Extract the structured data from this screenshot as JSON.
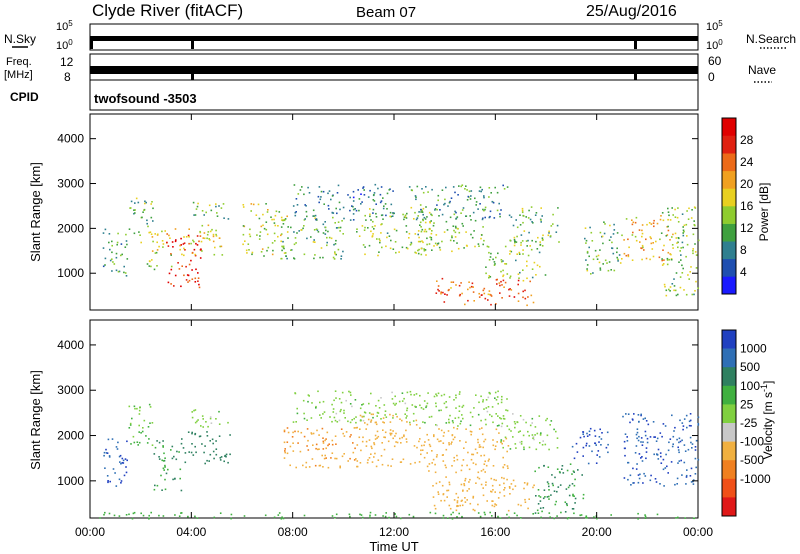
{
  "header": {
    "station": "Clyde River (fitACF)",
    "beam": "Beam 07",
    "date": "25/Aug/2016"
  },
  "strip_labels": {
    "nsky": "N.Sky",
    "nsearch": "N.Search",
    "freq_1": "Freq.",
    "freq_2": "[MHz]",
    "nave": "Nave",
    "cpid": "CPID",
    "cpid_value": "twofsound -3503"
  },
  "strip_ticks": {
    "nsky_left": [
      "10^5",
      "10^0"
    ],
    "nsky_right": [
      "10^5",
      "10^0"
    ],
    "freq_left": [
      "12",
      "8"
    ],
    "nave_right": [
      "60",
      "0"
    ]
  },
  "colors": {
    "power": [
      "#1a1aff",
      "#1f4fb0",
      "#2f7f8f",
      "#3fa03f",
      "#8fcc2f",
      "#e8d020",
      "#f0a020",
      "#ec6a18",
      "#e02010",
      "#e00000"
    ],
    "velocity": [
      "#2040c0",
      "#2f6fb5",
      "#2f8060",
      "#40b040",
      "#80d040",
      "#c8c8c8",
      "#f0b040",
      "#f08020",
      "#f05018",
      "#e01818"
    ]
  },
  "chart_data": [
    {
      "type": "heatmap",
      "title": "",
      "xlabel": "",
      "ylabel": "Slant Range [km]",
      "x_ticks": [
        "00:00",
        "04:00",
        "08:00",
        "12:00",
        "16:00",
        "20:00",
        "00:00"
      ],
      "y_ticks": [
        1000,
        2000,
        3000,
        4000
      ],
      "xlim_hours": [
        0,
        24
      ],
      "ylim_km": [
        180,
        4550
      ],
      "colorbar": {
        "label": "Power [dB]",
        "ticks": [
          "4",
          "8",
          "12",
          "16",
          "20",
          "24",
          "28"
        ],
        "range": [
          0,
          32
        ]
      },
      "regions": [
        {
          "t": [
            0.5,
            1.5
          ],
          "r": [
            900,
            2000
          ],
          "v": 10
        },
        {
          "t": [
            1.5,
            2.5
          ],
          "r": [
            1700,
            2700
          ],
          "v": 12
        },
        {
          "t": [
            2.2,
            3.2
          ],
          "r": [
            1100,
            2000
          ],
          "v": 16
        },
        {
          "t": [
            3.0,
            4.4
          ],
          "r": [
            700,
            1900
          ],
          "v": 28
        },
        {
          "t": [
            3.3,
            5.2
          ],
          "r": [
            1400,
            2100
          ],
          "v": 18
        },
        {
          "t": [
            4.0,
            5.5
          ],
          "r": [
            2200,
            2600
          ],
          "v": 12
        },
        {
          "t": [
            6.0,
            7.8
          ],
          "r": [
            1400,
            2600
          ],
          "v": 16
        },
        {
          "t": [
            7.5,
            10.0
          ],
          "r": [
            1300,
            2300
          ],
          "v": 12
        },
        {
          "t": [
            8.0,
            12.0
          ],
          "r": [
            2200,
            3000
          ],
          "v": 8
        },
        {
          "t": [
            10.5,
            13.5
          ],
          "r": [
            1400,
            2500
          ],
          "v": 14
        },
        {
          "t": [
            12.5,
            16.5
          ],
          "r": [
            2200,
            3000
          ],
          "v": 10
        },
        {
          "t": [
            13.0,
            15.5
          ],
          "r": [
            1500,
            2300
          ],
          "v": 14
        },
        {
          "t": [
            13.5,
            17.5
          ],
          "r": [
            300,
            900
          ],
          "v": 24
        },
        {
          "t": [
            15.5,
            18.0
          ],
          "r": [
            900,
            1800
          ],
          "v": 14
        },
        {
          "t": [
            16.5,
            18.5
          ],
          "r": [
            1700,
            2500
          ],
          "v": 12
        },
        {
          "t": [
            19.5,
            21.0
          ],
          "r": [
            1000,
            2200
          ],
          "v": 12
        },
        {
          "t": [
            21.0,
            23.0
          ],
          "r": [
            1300,
            2300
          ],
          "v": 20
        },
        {
          "t": [
            22.5,
            24.0
          ],
          "r": [
            500,
            2500
          ],
          "v": 14
        }
      ]
    },
    {
      "type": "heatmap",
      "title": "",
      "xlabel": "Time UT",
      "ylabel": "Slant Range [km]",
      "x_ticks": [
        "00:00",
        "04:00",
        "08:00",
        "12:00",
        "16:00",
        "20:00",
        "00:00"
      ],
      "y_ticks": [
        1000,
        2000,
        3000,
        4000
      ],
      "xlim_hours": [
        0,
        24
      ],
      "ylim_km": [
        180,
        4550
      ],
      "colorbar": {
        "label": "Velocity [m s^-1]",
        "ticks": [
          "1000",
          "500",
          "100",
          "25",
          "-25",
          "-100",
          "-500",
          "-1000"
        ]
      },
      "regions": [
        {
          "t": [
            0.5,
            1.5
          ],
          "r": [
            900,
            2000
          ],
          "v": 1000
        },
        {
          "t": [
            1.5,
            2.5
          ],
          "r": [
            1700,
            2700
          ],
          "v": 25
        },
        {
          "t": [
            2.5,
            3.6
          ],
          "r": [
            800,
            1900
          ],
          "v": 100
        },
        {
          "t": [
            3.5,
            5.5
          ],
          "r": [
            1400,
            2100
          ],
          "v": 300
        },
        {
          "t": [
            4.0,
            5.5
          ],
          "r": [
            2200,
            2600
          ],
          "v": 0
        },
        {
          "t": [
            7.5,
            10.5
          ],
          "r": [
            1300,
            2200
          ],
          "v": -500
        },
        {
          "t": [
            8.0,
            12.5
          ],
          "r": [
            2300,
            3000
          ],
          "v": 0
        },
        {
          "t": [
            10.5,
            13.0
          ],
          "r": [
            1300,
            2500
          ],
          "v": -300
        },
        {
          "t": [
            12.5,
            16.5
          ],
          "r": [
            2200,
            3000
          ],
          "v": 0
        },
        {
          "t": [
            13.0,
            16.5
          ],
          "r": [
            1200,
            2200
          ],
          "v": -300
        },
        {
          "t": [
            13.5,
            17.5
          ],
          "r": [
            300,
            1100
          ],
          "v": -300
        },
        {
          "t": [
            16.0,
            18.5
          ],
          "r": [
            1700,
            2500
          ],
          "v": 0
        },
        {
          "t": [
            17.5,
            19.5
          ],
          "r": [
            300,
            1400
          ],
          "v": 100
        },
        {
          "t": [
            19.0,
            20.5
          ],
          "r": [
            1400,
            2200
          ],
          "v": 1000
        },
        {
          "t": [
            21.0,
            24.0
          ],
          "r": [
            900,
            2500
          ],
          "v": 1000
        },
        {
          "t": [
            0.0,
            24.0
          ],
          "r": [
            180,
            320
          ],
          "v": 60
        }
      ]
    }
  ]
}
